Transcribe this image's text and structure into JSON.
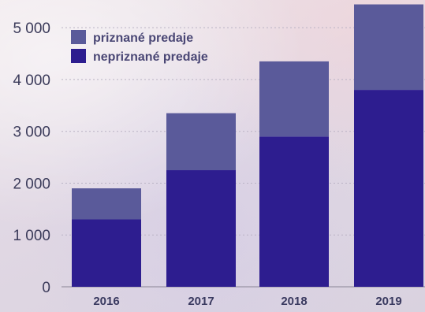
{
  "chart_data": {
    "type": "bar",
    "stacked": true,
    "categories": [
      "2016",
      "2017",
      "2018",
      "2019"
    ],
    "series": [
      {
        "name": "nepriznané predaje",
        "values": [
          1300,
          2250,
          2900,
          3800
        ],
        "color": "#2d1d8f"
      },
      {
        "name": "priznané predaje",
        "values": [
          600,
          1100,
          1450,
          1650
        ],
        "color": "#5a5a9a"
      }
    ],
    "yticks": [
      0,
      1000,
      2000,
      3000,
      4000,
      5000
    ],
    "ytick_labels": [
      "0",
      "1 000",
      "2 000",
      "3 000",
      "4 000",
      "5 000"
    ],
    "ylim": [
      0,
      5200
    ],
    "grid": true,
    "legend": {
      "placement": "top-left",
      "entries": [
        {
          "label": "priznané predaje",
          "color": "#5a5a9a"
        },
        {
          "label": "nepriznané predaje",
          "color": "#2d1d8f"
        }
      ]
    }
  }
}
